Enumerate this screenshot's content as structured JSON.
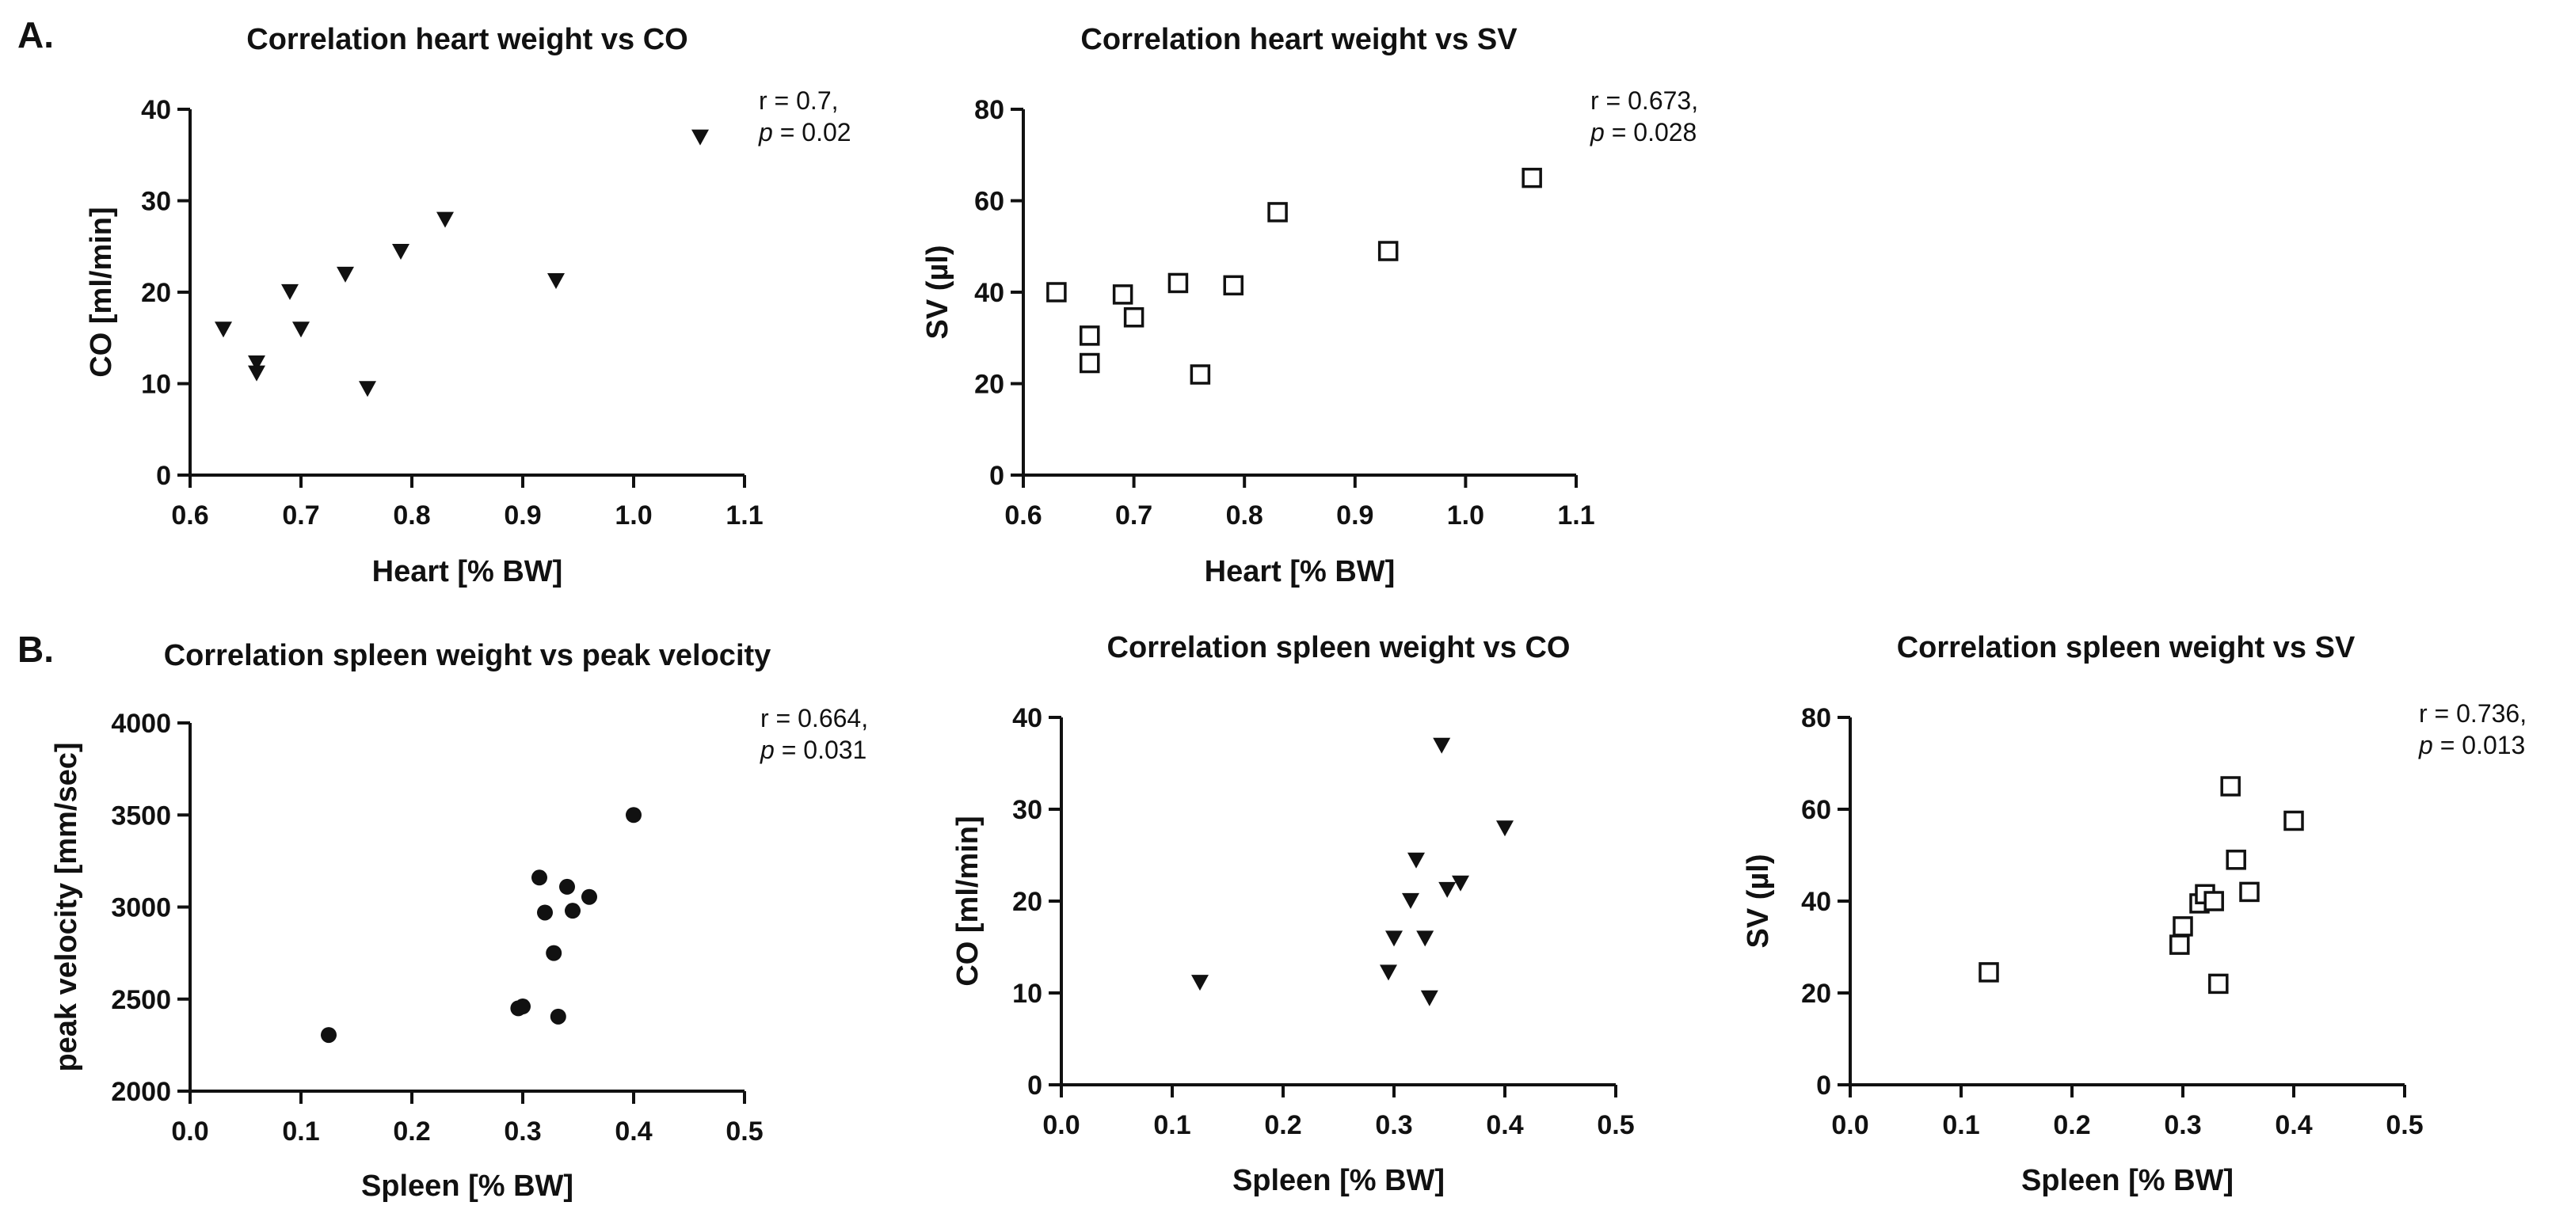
{
  "panels": [
    {
      "label": "A."
    },
    {
      "label": "B."
    }
  ],
  "chart_data": [
    {
      "type": "scatter",
      "title": "Correlation heart weight vs CO",
      "xlabel": "Heart [% BW]",
      "ylabel": "CO [ml/min]",
      "xlim": [
        0.6,
        1.1
      ],
      "ylim": [
        0,
        40
      ],
      "xticks": [
        "0.6",
        "0.7",
        "0.8",
        "0.9",
        "1.0",
        "1.1"
      ],
      "yticks": [
        "0",
        "10",
        "20",
        "30",
        "40"
      ],
      "marker": "triangle-down",
      "stat_r": "r = 0.7,",
      "stat_p_label": "p",
      "stat_p_value": " = 0.02",
      "x": [
        0.63,
        0.66,
        0.66,
        0.69,
        0.7,
        0.74,
        0.76,
        0.79,
        0.83,
        0.93,
        1.06
      ],
      "y": [
        16,
        12.3,
        11.2,
        20.1,
        16,
        22,
        9.5,
        24.5,
        28,
        21.3,
        37
      ]
    },
    {
      "type": "scatter",
      "title": "Correlation heart weight vs SV",
      "xlabel": "Heart [% BW]",
      "ylabel": "SV (µl)",
      "xlim": [
        0.6,
        1.1
      ],
      "ylim": [
        0,
        80
      ],
      "xticks": [
        "0.6",
        "0.7",
        "0.8",
        "0.9",
        "1.0",
        "1.1"
      ],
      "yticks": [
        "0",
        "20",
        "40",
        "60",
        "80"
      ],
      "marker": "square-open",
      "stat_r": "r = 0.673,",
      "stat_p_label": "p",
      "stat_p_value": " = 0.028",
      "x": [
        0.63,
        0.66,
        0.66,
        0.69,
        0.7,
        0.74,
        0.76,
        0.79,
        0.83,
        0.93,
        1.06
      ],
      "y": [
        40,
        30.5,
        24.5,
        39.5,
        34.5,
        42,
        22,
        41.5,
        57.5,
        49,
        65
      ]
    },
    {
      "type": "scatter",
      "title": "Correlation spleen weight vs peak velocity",
      "xlabel": "Spleen [% BW]",
      "ylabel": "peak velocity [mm/sec]",
      "xlim": [
        0,
        0.5
      ],
      "ylim": [
        2000,
        4000
      ],
      "xticks": [
        "0.0",
        "0.1",
        "0.2",
        "0.3",
        "0.4",
        "0.5"
      ],
      "yticks": [
        "2000",
        "2500",
        "3000",
        "3500",
        "4000"
      ],
      "marker": "circle",
      "stat_r": "r = 0.664,",
      "stat_p_label": "p",
      "stat_p_value": " = 0.031",
      "x": [
        0.125,
        0.296,
        0.3,
        0.315,
        0.32,
        0.328,
        0.332,
        0.34,
        0.345,
        0.36,
        0.4
      ],
      "y": [
        2305,
        2450,
        2460,
        3160,
        2970,
        2750,
        2405,
        3110,
        2980,
        3055,
        3500
      ]
    },
    {
      "type": "scatter",
      "title": "Correlation spleen weight vs CO",
      "xlabel": "Spleen [% BW]",
      "ylabel": "CO [ml/min]",
      "xlim": [
        0,
        0.5
      ],
      "ylim": [
        0,
        40
      ],
      "xticks": [
        "0.0",
        "0.1",
        "0.2",
        "0.3",
        "0.4",
        "0.5"
      ],
      "yticks": [
        "0",
        "10",
        "20",
        "30",
        "40"
      ],
      "marker": "triangle-down",
      "x": [
        0.125,
        0.295,
        0.3,
        0.315,
        0.32,
        0.328,
        0.332,
        0.343,
        0.348,
        0.36,
        0.4
      ],
      "y": [
        11.2,
        12.3,
        16,
        20.1,
        24.5,
        16,
        9.5,
        37,
        21.3,
        22,
        28
      ]
    },
    {
      "type": "scatter",
      "title": "Correlation spleen weight vs SV",
      "xlabel": "Spleen [% BW]",
      "ylabel": "SV (µl)",
      "xlim": [
        0,
        0.5
      ],
      "ylim": [
        0,
        80
      ],
      "xticks": [
        "0.0",
        "0.1",
        "0.2",
        "0.3",
        "0.4",
        "0.5"
      ],
      "yticks": [
        "0",
        "20",
        "40",
        "60",
        "80"
      ],
      "marker": "square-open",
      "stat_r": "r = 0.736,",
      "stat_p_label": "p",
      "stat_p_value": " = 0.013",
      "x": [
        0.125,
        0.297,
        0.3,
        0.315,
        0.32,
        0.328,
        0.332,
        0.343,
        0.348,
        0.36,
        0.4
      ],
      "y": [
        24.5,
        30.5,
        34.5,
        39.5,
        41.5,
        40,
        22,
        65,
        49,
        42,
        57.5
      ]
    }
  ]
}
